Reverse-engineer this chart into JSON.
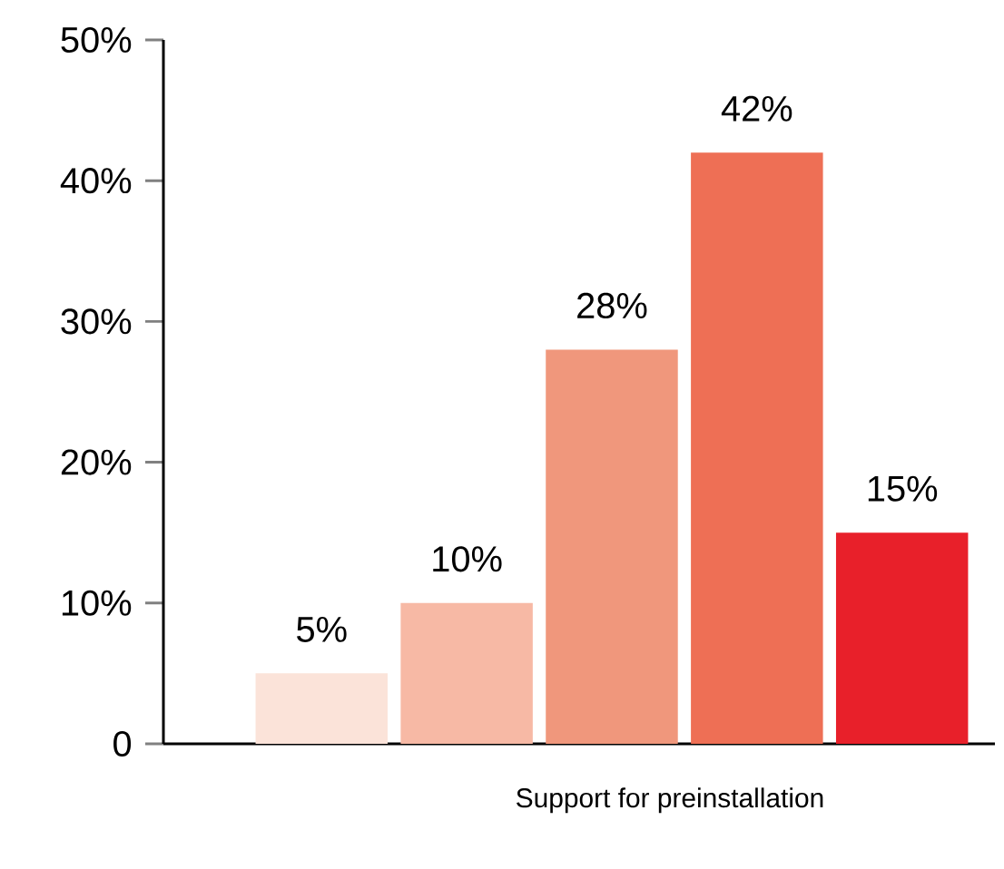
{
  "chart_data": {
    "type": "bar",
    "xlabel": "Support for preinstallation",
    "categories": [
      null,
      null,
      null,
      null,
      null
    ],
    "values": [
      5,
      10,
      28,
      42,
      15
    ],
    "value_labels": [
      "5%",
      "10%",
      "28%",
      "42%",
      "15%"
    ],
    "colors": [
      "#fbe3d9",
      "#f7b9a5",
      "#f0977c",
      "#ee6f55",
      "#e8202a"
    ],
    "ylim": [
      0,
      50
    ],
    "yticks": [
      0,
      {
        "value": 10,
        "label": "10%"
      },
      {
        "value": 20,
        "label": "20%"
      },
      {
        "value": 30,
        "label": "30%"
      },
      {
        "value": 40,
        "label": "40%"
      },
      {
        "value": 50,
        "label": "50%"
      }
    ],
    "grid": false
  }
}
